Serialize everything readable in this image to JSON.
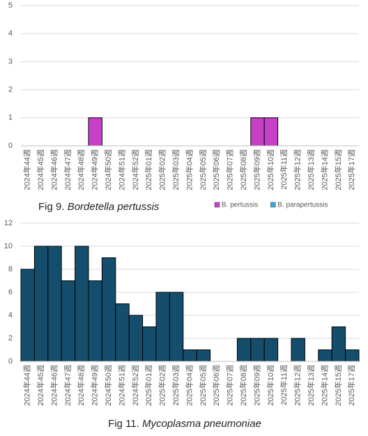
{
  "chart_data": [
    {
      "type": "bar",
      "stacked": true,
      "title": "Fig 9.",
      "title_italic": "Bordetella pertussis",
      "categories": [
        "2024年44週",
        "2024年45週",
        "2024年46週",
        "2024年47週",
        "2024年48週",
        "2024年49週",
        "2024年50週",
        "2024年51週",
        "2024年52週",
        "2025年01週",
        "2025年02週",
        "2025年03週",
        "2025年04週",
        "2025年05週",
        "2025年06週",
        "2025年07週",
        "2025年08週",
        "2025年09週",
        "2025年10週",
        "2025年11週",
        "2025年12週",
        "2025年13週",
        "2025年14週",
        "2025年15週",
        "2025年17週"
      ],
      "series": [
        {
          "name": "B. pertussis",
          "color": "#c840c8",
          "values": [
            0,
            0,
            0,
            0,
            0,
            1,
            0,
            0,
            0,
            0,
            0,
            0,
            0,
            0,
            0,
            0,
            0,
            1,
            1,
            0,
            0,
            0,
            0,
            0,
            0
          ]
        },
        {
          "name": "B. parapertussis",
          "color": "#3ea8de",
          "values": [
            0,
            0,
            0,
            0,
            0,
            0,
            0,
            0,
            0,
            0,
            0,
            0,
            0,
            0,
            0,
            0,
            0,
            0,
            0,
            0,
            0,
            0,
            0,
            0,
            0
          ]
        }
      ],
      "ylim": [
        0,
        5
      ],
      "yticks": [
        0,
        1,
        2,
        3,
        4,
        5
      ],
      "grid": true,
      "legend": "bottom-right"
    },
    {
      "type": "bar",
      "title": "Fig 11.",
      "title_italic": "Mycoplasma pneumoniae",
      "categories": [
        "2024年44週",
        "2024年45週",
        "2024年46週",
        "2024年47週",
        "2024年48週",
        "2024年49週",
        "2024年50週",
        "2024年51週",
        "2024年52週",
        "2025年01週",
        "2025年02週",
        "2025年03週",
        "2025年04週",
        "2025年05週",
        "2025年06週",
        "2025年07週",
        "2025年08週",
        "2025年09週",
        "2025年10週",
        "2025年11週",
        "2025年12週",
        "2025年13週",
        "2025年14週",
        "2025年15週",
        "2025年17週"
      ],
      "values": [
        8,
        10,
        10,
        7,
        10,
        7,
        9,
        5,
        4,
        3,
        6,
        6,
        1,
        1,
        0,
        0,
        2,
        2,
        2,
        0,
        2,
        0,
        1,
        3,
        1
      ],
      "color": "#154e6c",
      "ylim": [
        0,
        12
      ],
      "yticks": [
        0,
        2,
        4,
        6,
        8,
        10,
        12
      ],
      "grid": true
    }
  ]
}
